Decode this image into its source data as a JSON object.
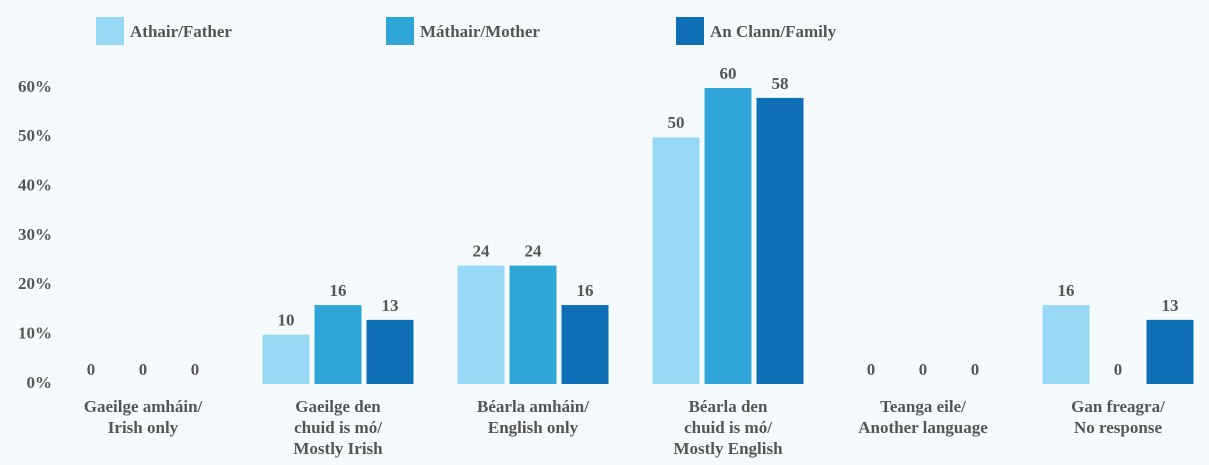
{
  "chart_data": {
    "type": "bar",
    "categories": [
      [
        "Gaeilge amháin/",
        "Irish only"
      ],
      [
        "Gaeilge den",
        "chuid is mó/",
        "Mostly Irish"
      ],
      [
        "Béarla amháin/",
        "English only"
      ],
      [
        "Béarla den",
        "chuid is mó/",
        "Mostly English"
      ],
      [
        "Teanga eile/",
        "Another language"
      ],
      [
        "Gan freagra/",
        "No response"
      ]
    ],
    "series": [
      {
        "name": "Athair/Father",
        "color": "#97d9f5",
        "values": [
          0,
          10,
          24,
          50,
          0,
          16
        ]
      },
      {
        "name": "Máthair/Mother",
        "color": "#30a5d8",
        "values": [
          0,
          16,
          24,
          60,
          0,
          0
        ]
      },
      {
        "name": "An Clann/Family",
        "color": "#0e6fb6",
        "values": [
          0,
          13,
          16,
          58,
          0,
          13
        ]
      }
    ],
    "ylim": [
      0,
      60
    ],
    "yticks": [
      {
        "value": 0,
        "label": "0%"
      },
      {
        "value": 10,
        "label": "10%"
      },
      {
        "value": 20,
        "label": "20%"
      },
      {
        "value": 30,
        "label": "30%"
      },
      {
        "value": 40,
        "label": "40%"
      },
      {
        "value": 50,
        "label": "50%"
      },
      {
        "value": 60,
        "label": "60%"
      }
    ],
    "legend": "top"
  }
}
